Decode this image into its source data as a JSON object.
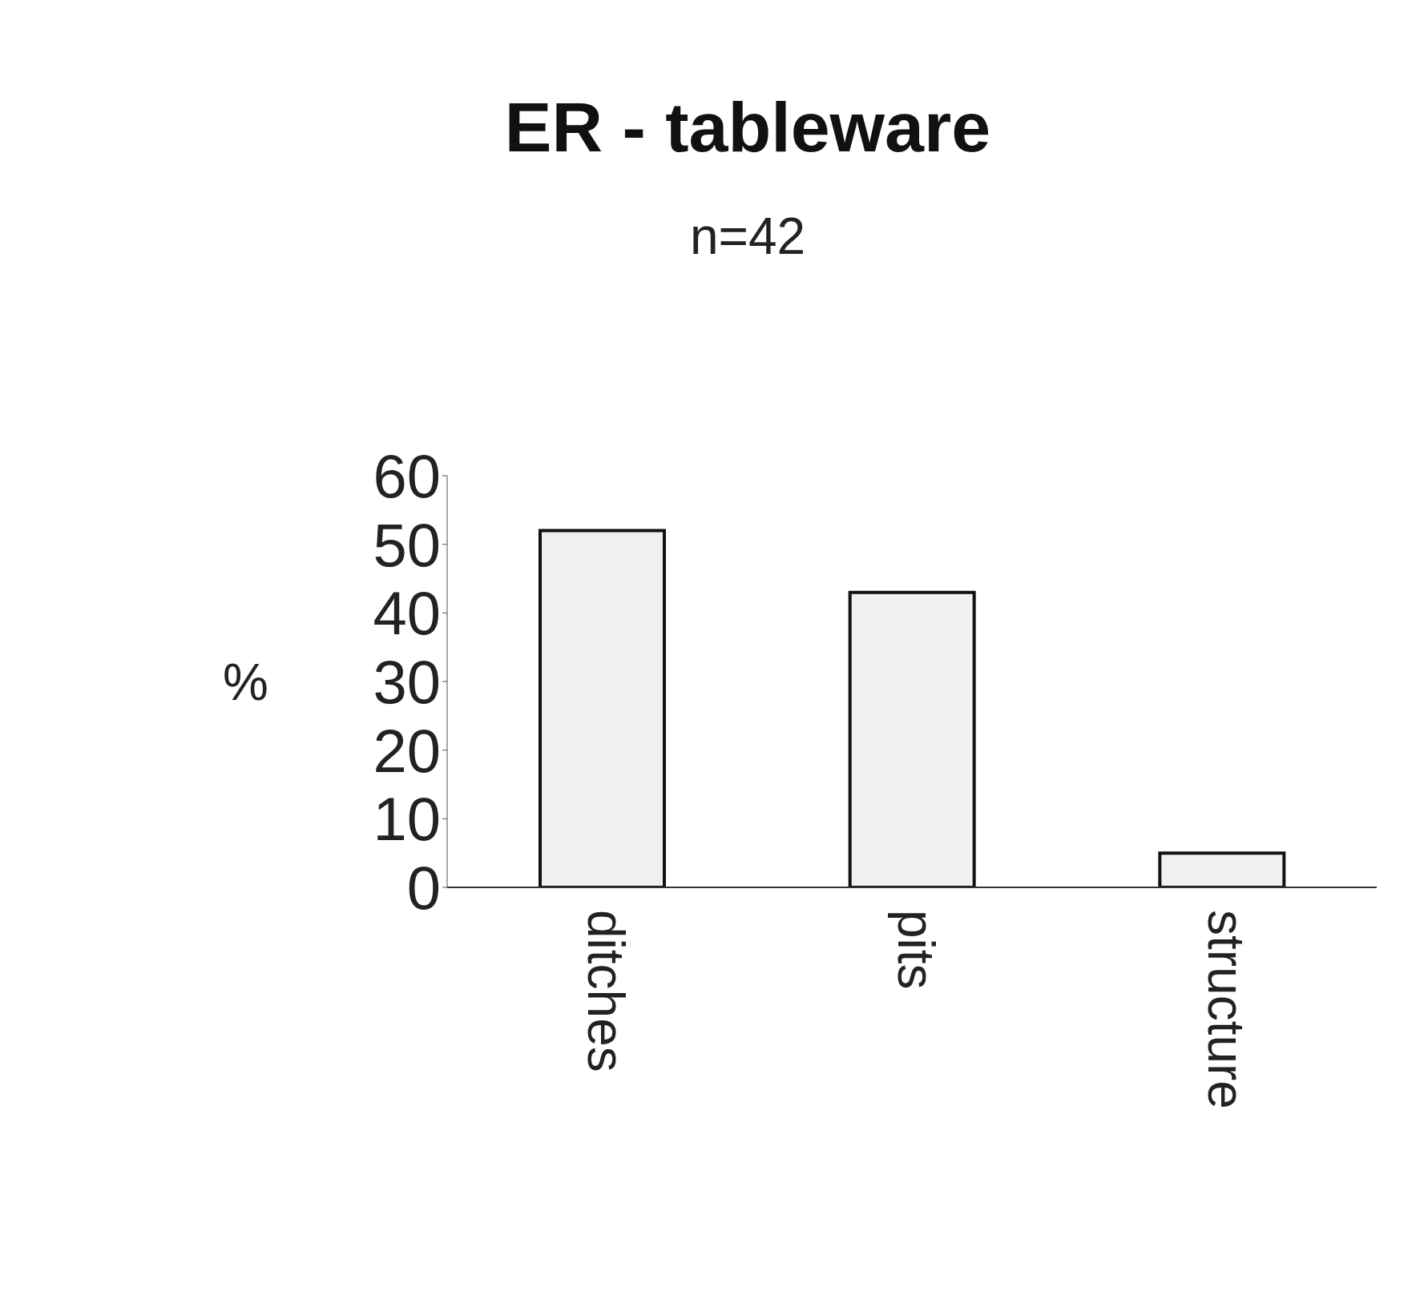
{
  "chart_data": {
    "type": "bar",
    "title": "ER - tableware",
    "subtitle": "n=42",
    "ylabel": "%",
    "categories": [
      "ditches",
      "pits",
      "structure"
    ],
    "values": [
      52,
      43,
      5
    ],
    "color": "#f0f0f0",
    "ylim": [
      0,
      60
    ],
    "yticks": [
      0,
      10,
      20,
      30,
      40,
      50,
      60
    ]
  }
}
